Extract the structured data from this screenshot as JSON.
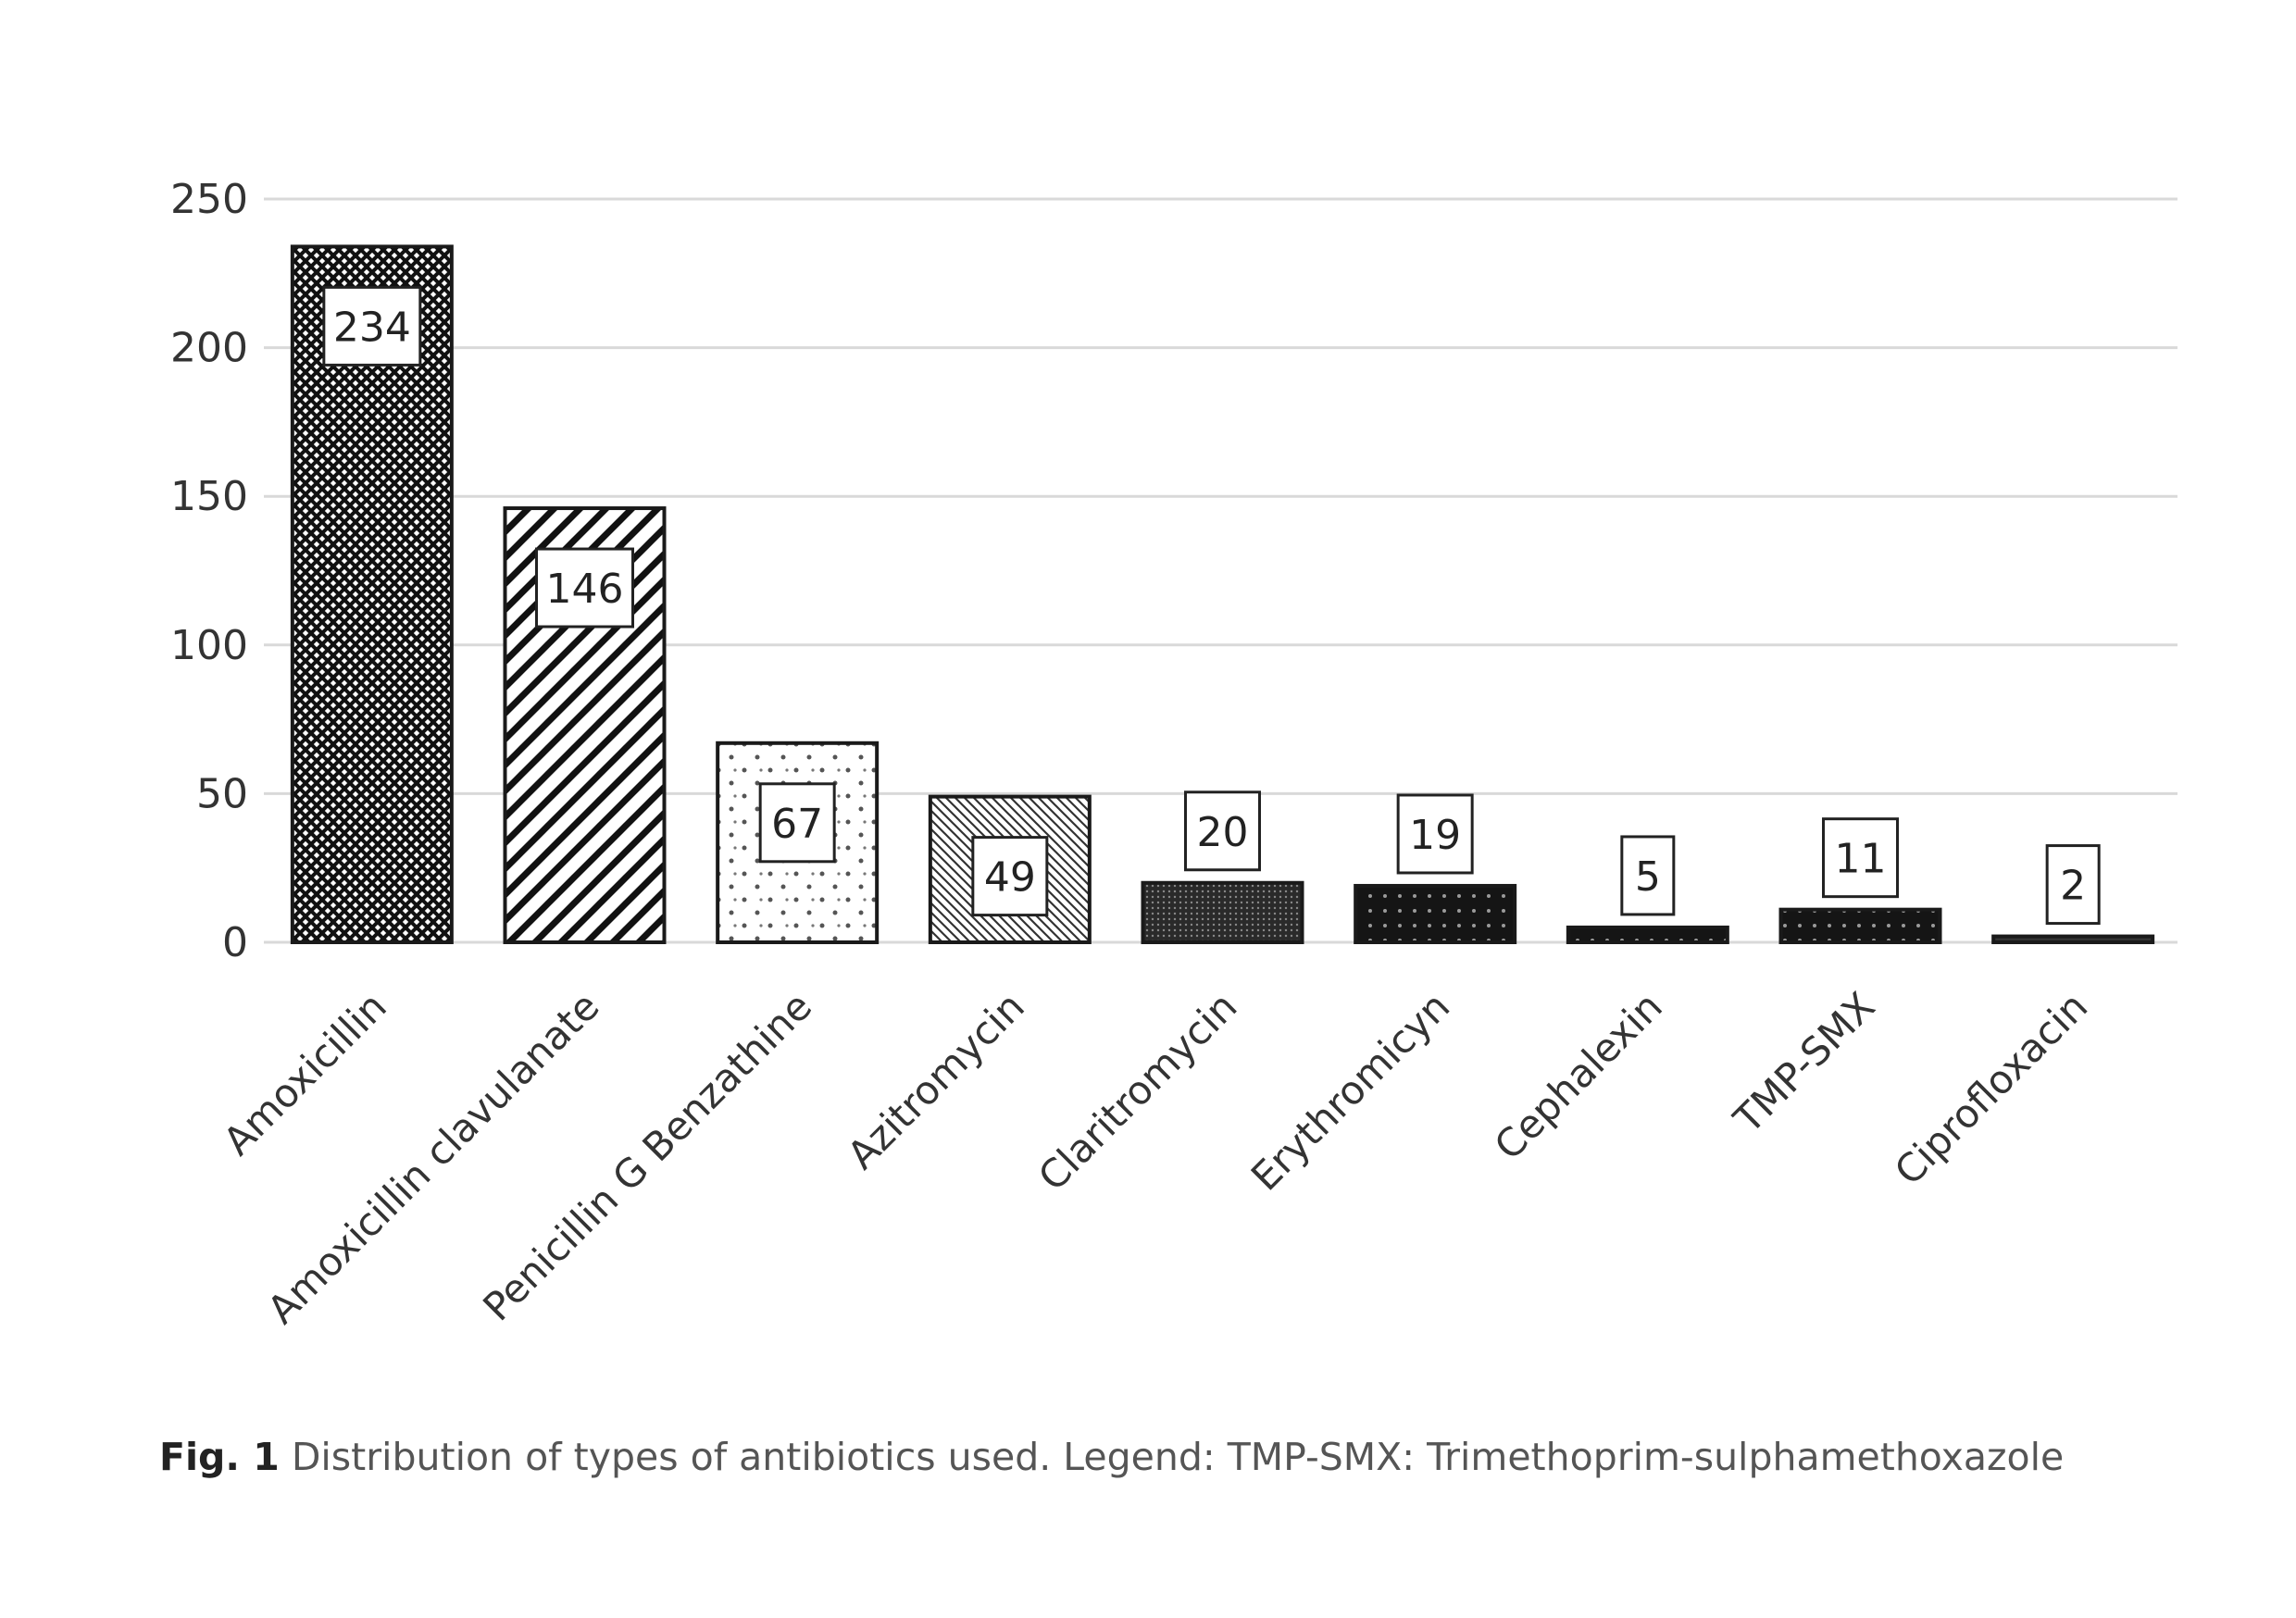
{
  "chart_data": {
    "type": "bar",
    "categories": [
      "Amoxicillin",
      "Amoxicillin clavulanate",
      "Penicillin G Benzathine",
      "Azitromycin",
      "Claritromycin",
      "Erythromicyn",
      "Cephalexin",
      "TMP-SMX",
      "Ciprofloxacin"
    ],
    "values": [
      234,
      146,
      67,
      49,
      20,
      19,
      5,
      11,
      2
    ],
    "data_labels": [
      "234",
      "146",
      "67",
      "49",
      "20",
      "19",
      "5",
      "11",
      "2"
    ],
    "ylim": [
      0,
      250
    ],
    "yticks": [
      0,
      50,
      100,
      150,
      200,
      250
    ],
    "ytick_labels": [
      "0",
      "50",
      "100",
      "150",
      "200",
      "250"
    ],
    "grid": true,
    "legend": "none",
    "patterns": [
      "crosshatch",
      "diagonal-stripes",
      "dotted-light",
      "fine-diagonal",
      "dense-dark",
      "dark-dotted",
      "dark-dotted",
      "dark-dotted",
      "dark-solid"
    ]
  },
  "caption": {
    "label": "Fig. 1",
    "text": "Distribution of types of antibiotics used. Legend: TMP-SMX: Trimethoprim-sulphamethoxazole"
  },
  "colors": {
    "grid": "#d9d9d9",
    "bar_stroke": "#1a1a1a",
    "text": "#333333"
  }
}
